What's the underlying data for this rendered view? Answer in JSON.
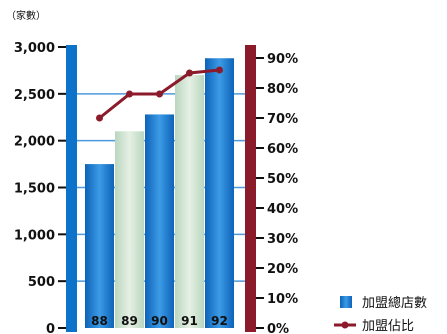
{
  "chart_data": {
    "type": "bar",
    "y_unit_label": "（家數）",
    "categories": [
      "88",
      "89",
      "90",
      "91",
      "92"
    ],
    "series": [
      {
        "name": "加盟總店數",
        "type": "bar",
        "axis": "left",
        "values": [
          1750,
          2100,
          2280,
          2700,
          2880
        ],
        "colors": [
          "#1f7fd0",
          "#cfe3cf",
          "#1f7fd0",
          "#cfe3cf",
          "#1f7fd0"
        ]
      },
      {
        "name": "加盟佔比",
        "type": "line",
        "axis": "right",
        "values": [
          70,
          78,
          78,
          85,
          86
        ],
        "color": "#8b1a2a"
      }
    ],
    "y_left": {
      "min": 0,
      "max": 3000,
      "ticks": [
        0,
        500,
        1000,
        1500,
        2000,
        2500,
        3000
      ],
      "tick_labels": [
        "0",
        "500",
        "1,000",
        "1,500",
        "2,000",
        "2,500",
        "3,000"
      ]
    },
    "y_right": {
      "min": 0,
      "max": 90,
      "ticks": [
        0,
        10,
        20,
        30,
        40,
        50,
        60,
        70,
        80,
        90
      ],
      "tick_labels": [
        "0%",
        "10%",
        "20%",
        "30%",
        "40%",
        "50%",
        "60%",
        "70%",
        "80%",
        "90%"
      ]
    },
    "grid": true,
    "legend_position": "bottom-right",
    "colors": {
      "left_axis_bar": "#0d72c9",
      "right_axis_bar": "#8b1a2a",
      "grid": "#3a8fd8"
    }
  }
}
